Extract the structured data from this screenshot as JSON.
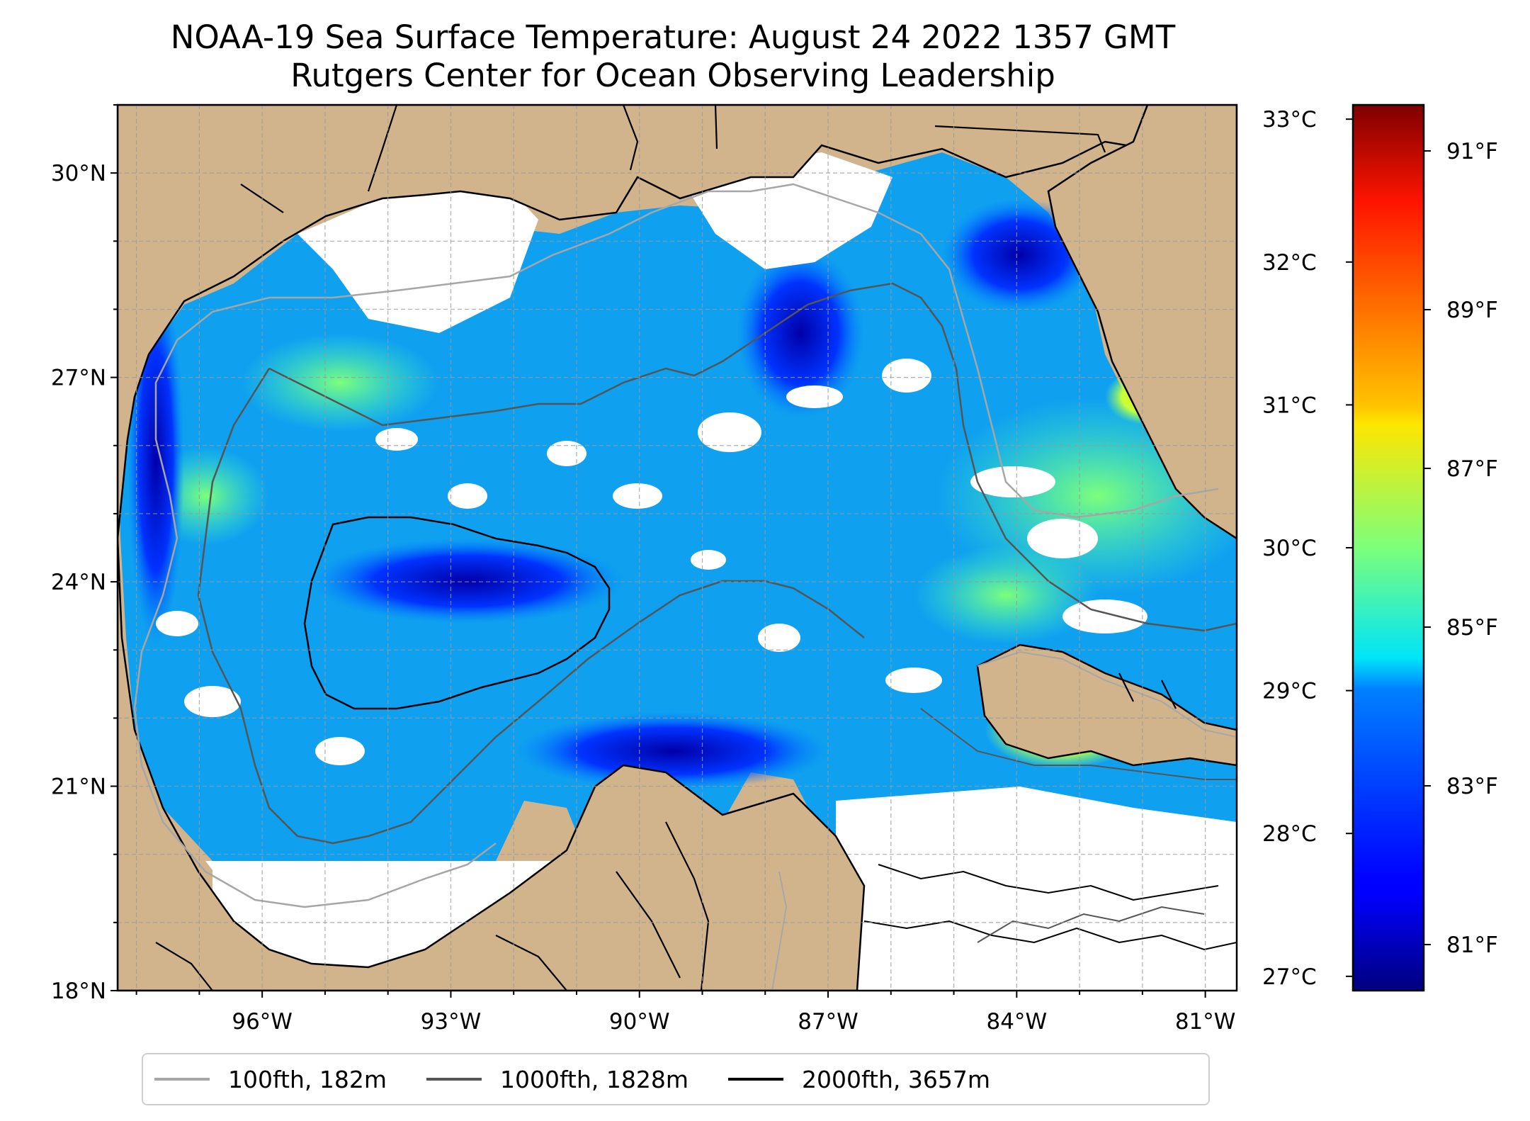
{
  "title": {
    "line1": "NOAA-19 Sea Surface Temperature: August 24 2022 1357 GMT",
    "line2": "Rutgers Center for Ocean Observing Leadership"
  },
  "map": {
    "lon_range": [
      -98.3,
      -80.5
    ],
    "lat_range": [
      18,
      31
    ],
    "lat_ticks": [
      {
        "value": 30,
        "label": "30°N"
      },
      {
        "value": 27,
        "label": "27°N"
      },
      {
        "value": 24,
        "label": "24°N"
      },
      {
        "value": 21,
        "label": "21°N"
      },
      {
        "value": 18,
        "label": "18°N"
      }
    ],
    "lon_ticks": [
      {
        "value": -96,
        "label": "96°W"
      },
      {
        "value": -93,
        "label": "93°W"
      },
      {
        "value": -90,
        "label": "90°W"
      },
      {
        "value": -87,
        "label": "87°W"
      },
      {
        "value": -84,
        "label": "84°W"
      },
      {
        "value": -81,
        "label": "81°W"
      }
    ],
    "gridlines": true,
    "land_color": "#d2b48c",
    "cloud_mask_color": "#ffffff"
  },
  "colorbar": {
    "colormap": "jet",
    "celsius_range": [
      26.9,
      33.1
    ],
    "celsius_ticks": [
      {
        "value": 33,
        "label": "33°C"
      },
      {
        "value": 32,
        "label": "32°C"
      },
      {
        "value": 31,
        "label": "31°C"
      },
      {
        "value": 30,
        "label": "30°C"
      },
      {
        "value": 29,
        "label": "29°C"
      },
      {
        "value": 28,
        "label": "28°C"
      },
      {
        "value": 27,
        "label": "27°C"
      }
    ],
    "fahrenheit_ticks": [
      {
        "value": 91,
        "label": "91°F"
      },
      {
        "value": 89,
        "label": "89°F"
      },
      {
        "value": 87,
        "label": "87°F"
      },
      {
        "value": 85,
        "label": "85°F"
      },
      {
        "value": 83,
        "label": "83°F"
      },
      {
        "value": 81,
        "label": "81°F"
      }
    ]
  },
  "legend": {
    "placement": "bottom-center",
    "entries": [
      {
        "label": "100fth, 182m",
        "color": "#a6a6a6"
      },
      {
        "label": "1000fth, 1828m",
        "color": "#555555"
      },
      {
        "label": "2000fth, 3657m",
        "color": "#000000"
      }
    ]
  }
}
